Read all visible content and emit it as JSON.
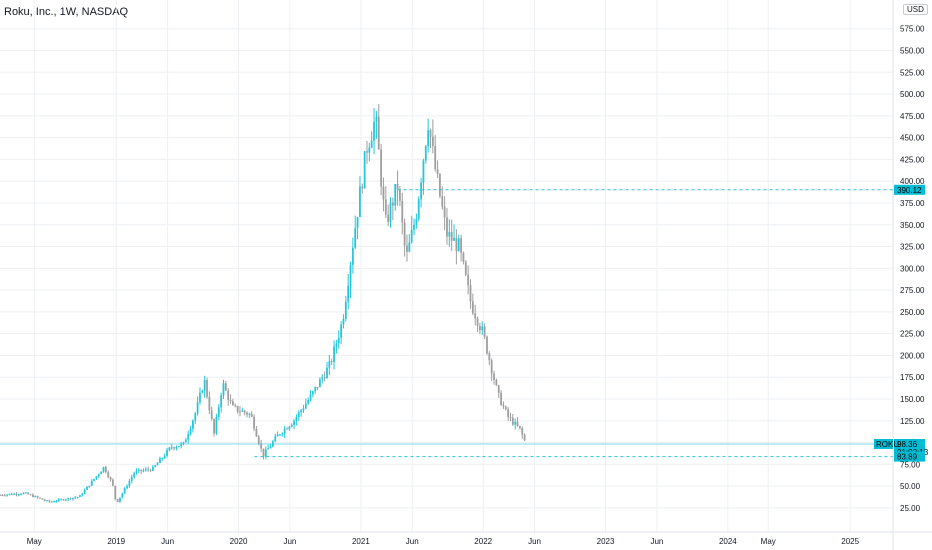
{
  "legend": {
    "title": "Roku, Inc., 1W, NASDAQ"
  },
  "currency": "USD",
  "colors": {
    "up": "#26c6da",
    "down": "#9e9e9e",
    "level": "#26c6da",
    "grid": "#eef0f3",
    "tag": "#00bcd4"
  },
  "chart_data": {
    "type": "candlestick",
    "symbol": "ROKU",
    "timeframe": "1W",
    "exchange": "NASDAQ",
    "ylim": [
      10,
      585
    ],
    "y_ticks": [
      25,
      50,
      75,
      100,
      125,
      150,
      175,
      200,
      225,
      250,
      275,
      300,
      325,
      350,
      375,
      400,
      425,
      450,
      475,
      500,
      525,
      550,
      575
    ],
    "x_ticks": [
      {
        "label": "May",
        "t": 2018.33
      },
      {
        "label": "2019",
        "t": 2019.0
      },
      {
        "label": "Jun",
        "t": 2019.42
      },
      {
        "label": "2020",
        "t": 2020.0
      },
      {
        "label": "Jun",
        "t": 2020.42
      },
      {
        "label": "2021",
        "t": 2021.0
      },
      {
        "label": "Jun",
        "t": 2021.42
      },
      {
        "label": "2022",
        "t": 2022.0
      },
      {
        "label": "Jun",
        "t": 2022.42
      },
      {
        "label": "2023",
        "t": 2023.0
      },
      {
        "label": "Jun",
        "t": 2023.42
      },
      {
        "label": "2024",
        "t": 2024.0
      },
      {
        "label": "May",
        "t": 2024.33
      },
      {
        "label": "2025",
        "t": 2025.0
      }
    ],
    "x_range": [
      2018.05,
      2025.35
    ],
    "close_path": [
      [
        2018.05,
        40
      ],
      [
        2018.25,
        42
      ],
      [
        2018.45,
        32
      ],
      [
        2018.7,
        38
      ],
      [
        2018.9,
        72
      ],
      [
        2018.97,
        52
      ],
      [
        2019.0,
        30
      ],
      [
        2019.15,
        66
      ],
      [
        2019.3,
        70
      ],
      [
        2019.45,
        95
      ],
      [
        2019.55,
        98
      ],
      [
        2019.65,
        135
      ],
      [
        2019.72,
        172
      ],
      [
        2019.8,
        110
      ],
      [
        2019.87,
        168
      ],
      [
        2019.95,
        140
      ],
      [
        2020.1,
        132
      ],
      [
        2020.2,
        85
      ],
      [
        2020.33,
        110
      ],
      [
        2020.45,
        125
      ],
      [
        2020.6,
        155
      ],
      [
        2020.75,
        190
      ],
      [
        2020.85,
        240
      ],
      [
        2020.95,
        345
      ],
      [
        2021.05,
        440
      ],
      [
        2021.12,
        472
      ],
      [
        2021.2,
        350
      ],
      [
        2021.3,
        395
      ],
      [
        2021.37,
        310
      ],
      [
        2021.45,
        360
      ],
      [
        2021.55,
        470
      ],
      [
        2021.6,
        420
      ],
      [
        2021.7,
        340
      ],
      [
        2021.8,
        325
      ],
      [
        2021.9,
        260
      ],
      [
        2022.0,
        225
      ],
      [
        2022.12,
        155
      ],
      [
        2022.2,
        130
      ],
      [
        2022.3,
        115
      ],
      [
        2022.35,
        98.36
      ]
    ],
    "levels": [
      {
        "name": "resistance",
        "value": 390.12,
        "style": "dashed",
        "start_t": 2021.3
      },
      {
        "name": "support",
        "value": 83.89,
        "style": "dashed",
        "start_t": 2020.13
      },
      {
        "name": "last-price",
        "value": 98.36,
        "style": "solid",
        "start_t": 2018.05
      }
    ],
    "price_tags": [
      {
        "label": "390.12",
        "value": 390.12
      },
      {
        "label": "98.36",
        "value": 98.36,
        "sub": "01:02:13",
        "symbol": "ROKU"
      },
      {
        "label": "83.89",
        "value": 83.89
      }
    ]
  }
}
